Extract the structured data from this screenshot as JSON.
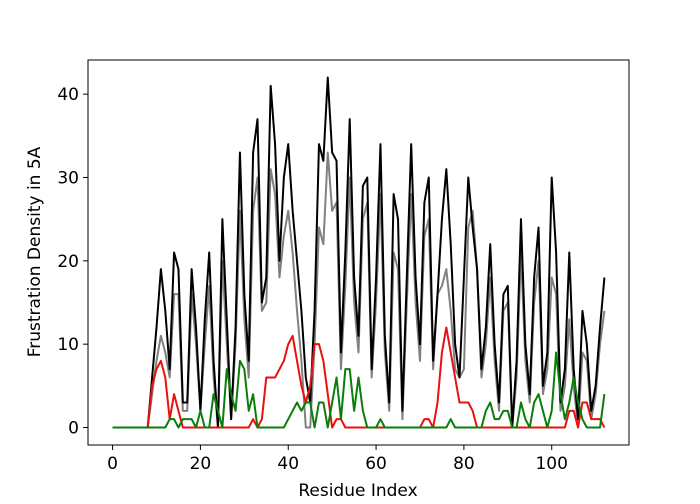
{
  "chart_data": {
    "type": "line",
    "xlabel": "Residue Index",
    "ylabel": "Frustration Density in 5A",
    "x": [
      0,
      1,
      2,
      3,
      4,
      5,
      6,
      7,
      8,
      9,
      10,
      11,
      12,
      13,
      14,
      15,
      16,
      17,
      18,
      19,
      20,
      21,
      22,
      23,
      24,
      25,
      26,
      27,
      28,
      29,
      30,
      31,
      32,
      33,
      34,
      35,
      36,
      37,
      38,
      39,
      40,
      41,
      42,
      43,
      44,
      45,
      46,
      47,
      48,
      49,
      50,
      51,
      52,
      53,
      54,
      55,
      56,
      57,
      58,
      59,
      60,
      61,
      62,
      63,
      64,
      65,
      66,
      67,
      68,
      69,
      70,
      71,
      72,
      73,
      74,
      75,
      76,
      77,
      78,
      79,
      80,
      81,
      82,
      83,
      84,
      85,
      86,
      87,
      88,
      89,
      90,
      91,
      92,
      93,
      94,
      95,
      96,
      97,
      98,
      99,
      100,
      101,
      102,
      103,
      104,
      105,
      106,
      107,
      108,
      109,
      110,
      111,
      112
    ],
    "series": [
      {
        "color": "#808080",
        "values": [
          0,
          0,
          0,
          0,
          0,
          0,
          0,
          0,
          0,
          4,
          8,
          11,
          9,
          6,
          16,
          16,
          2,
          2,
          16,
          10,
          2,
          10,
          17,
          6,
          0,
          20,
          10,
          1,
          10,
          26,
          13,
          6,
          26,
          30,
          14,
          15,
          31,
          28,
          18,
          23,
          26,
          21,
          14,
          8,
          0,
          0,
          10,
          24,
          22,
          33,
          26,
          27,
          7,
          17,
          30,
          15,
          9,
          25,
          27,
          6,
          15,
          28,
          9,
          2,
          21,
          19,
          1,
          15,
          28,
          15,
          8,
          23,
          25,
          7,
          16,
          17,
          19,
          14,
          7,
          6,
          7,
          24,
          26,
          19,
          6,
          10,
          18,
          8,
          2,
          14,
          15,
          0,
          6,
          21,
          8,
          3,
          15,
          20,
          4,
          7,
          18,
          16,
          2,
          5,
          13,
          5,
          0,
          9,
          8,
          1,
          4,
          10,
          14
        ]
      },
      {
        "color": "#000000",
        "values": [
          0,
          0,
          0,
          0,
          0,
          0,
          0,
          0,
          0,
          6,
          12,
          19,
          14,
          7,
          21,
          19,
          3,
          3,
          19,
          12,
          2,
          13,
          21,
          8,
          0,
          25,
          13,
          1,
          12,
          33,
          16,
          8,
          33,
          37,
          15,
          18,
          41,
          34,
          20,
          30,
          34,
          26,
          20,
          14,
          6,
          3,
          14,
          34,
          32,
          42,
          33,
          32,
          9,
          21,
          37,
          18,
          11,
          29,
          30,
          7,
          18,
          34,
          11,
          3,
          28,
          25,
          2,
          18,
          34,
          18,
          10,
          27,
          30,
          8,
          16,
          25,
          31,
          22,
          10,
          6,
          18,
          30,
          24,
          19,
          7,
          12,
          22,
          10,
          3,
          16,
          17,
          0,
          8,
          25,
          10,
          4,
          18,
          24,
          5,
          9,
          30,
          21,
          3,
          7,
          21,
          7,
          1,
          14,
          10,
          2,
          5,
          12,
          18
        ]
      },
      {
        "color": "#e8120c",
        "values": [
          0,
          0,
          0,
          0,
          0,
          0,
          0,
          0,
          0,
          5,
          7,
          8,
          6,
          1,
          4,
          2,
          0,
          0,
          0,
          0,
          0,
          0,
          0,
          0,
          0,
          0,
          0,
          0,
          0,
          0,
          0,
          0,
          1,
          0,
          1,
          6,
          6,
          6,
          7,
          8,
          10,
          11,
          8,
          5,
          3,
          5,
          10,
          10,
          8,
          4,
          0,
          1,
          1,
          0,
          0,
          0,
          0,
          0,
          0,
          0,
          0,
          0,
          0,
          0,
          0,
          0,
          0,
          0,
          0,
          0,
          0,
          1,
          1,
          0,
          3,
          9,
          12,
          9,
          6,
          3,
          3,
          3,
          2,
          0,
          0,
          0,
          0,
          0,
          0,
          0,
          0,
          0,
          0,
          0,
          0,
          0,
          0,
          0,
          0,
          0,
          0,
          0,
          0,
          0,
          2,
          2,
          0,
          3,
          3,
          1,
          1,
          1,
          0
        ]
      },
      {
        "color": "#0a7d0a",
        "values": [
          0,
          0,
          0,
          0,
          0,
          0,
          0,
          0,
          0,
          0,
          0,
          0,
          0,
          1,
          1,
          0,
          1,
          1,
          1,
          0,
          2,
          0,
          0,
          4,
          2,
          0,
          7,
          4,
          2,
          8,
          7,
          2,
          4,
          0,
          0,
          0,
          0,
          0,
          0,
          0,
          1,
          2,
          3,
          2,
          3,
          3,
          0,
          3,
          3,
          0,
          3,
          6,
          1,
          7,
          7,
          2,
          6,
          2,
          0,
          0,
          0,
          1,
          0,
          0,
          0,
          0,
          0,
          0,
          0,
          0,
          0,
          0,
          0,
          0,
          0,
          0,
          0,
          1,
          0,
          0,
          0,
          0,
          0,
          0,
          0,
          2,
          3,
          1,
          1,
          2,
          2,
          0,
          0,
          3,
          1,
          0,
          3,
          4,
          2,
          0,
          2,
          9,
          4,
          1,
          3,
          6,
          3,
          1,
          0,
          0,
          0,
          0,
          4
        ]
      }
    ],
    "xlim": [
      -5.6,
      117.6
    ],
    "ylim": [
      -2.1,
      44.1
    ],
    "xticks": [
      0,
      20,
      40,
      60,
      80,
      100
    ],
    "yticks": [
      0,
      10,
      20,
      30,
      40
    ]
  }
}
